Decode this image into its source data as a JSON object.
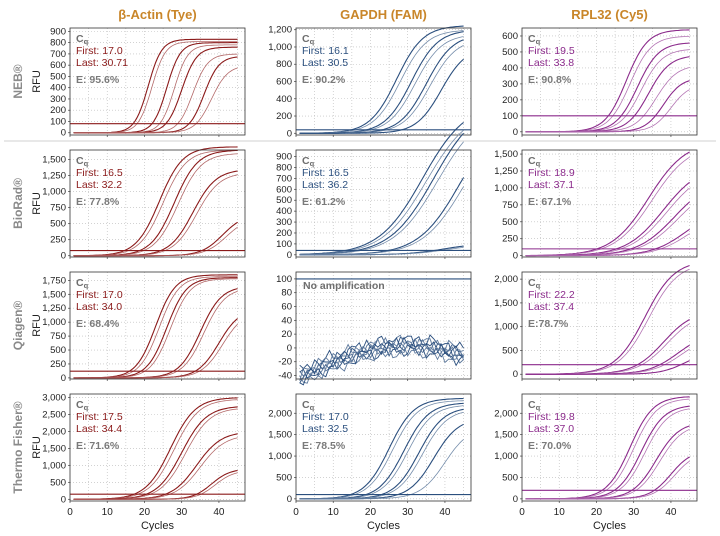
{
  "figure": {
    "columns": [
      {
        "title": "β-Actin (Tye)",
        "color": "#8b1a1a"
      },
      {
        "title": "GAPDH (FAM)",
        "color": "#2b4f7e"
      },
      {
        "title": "RPL32 (Cy5)",
        "color": "#8b2a8b"
      }
    ],
    "rows": [
      "NEB®",
      "BioRad®",
      "Qiagen®",
      "Thermo Fisher®"
    ],
    "y_label": "RFU",
    "x_label": "Cycles",
    "header_color": "#c9862a",
    "cq_label": "Cq"
  },
  "chart_data": [
    {
      "type": "line",
      "row": 0,
      "col": 0,
      "xlim": [
        0,
        47
      ],
      "ylim": [
        -20,
        930
      ],
      "yticks": [
        0,
        100,
        200,
        300,
        400,
        500,
        600,
        700,
        800,
        900
      ],
      "xticks": [
        0,
        10,
        20,
        30,
        40
      ],
      "threshold": 80,
      "first": "First: 17.0",
      "last": "Last: 30.71",
      "efficiency": "E: 95.6%",
      "curves": [
        {
          "mid": 21,
          "k": 0.55,
          "plateau": 830,
          "base": 0
        },
        {
          "mid": 22,
          "k": 0.55,
          "plateau": 810,
          "base": 0
        },
        {
          "mid": 26,
          "k": 0.55,
          "plateau": 800,
          "base": 0
        },
        {
          "mid": 28,
          "k": 0.55,
          "plateau": 780,
          "base": 0
        },
        {
          "mid": 30,
          "k": 0.5,
          "plateau": 760,
          "base": 0
        },
        {
          "mid": 33,
          "k": 0.5,
          "plateau": 700,
          "base": 0
        },
        {
          "mid": 36,
          "k": 0.5,
          "plateau": 680,
          "base": 0
        },
        {
          "mid": 38,
          "k": 0.45,
          "plateau": 600,
          "base": 0
        }
      ]
    },
    {
      "type": "line",
      "row": 0,
      "col": 1,
      "xlim": [
        0,
        47
      ],
      "ylim": [
        -20,
        1220
      ],
      "yticks": [
        0,
        200,
        400,
        600,
        800,
        1000,
        1200
      ],
      "xticks": [
        0,
        10,
        20,
        30,
        40
      ],
      "threshold": 40,
      "first": "First: 16.1",
      "last": "Last: 30.5",
      "efficiency": "E: 90.2%",
      "curves": [
        {
          "mid": 27,
          "k": 0.28,
          "plateau": 1250,
          "base": 0
        },
        {
          "mid": 28,
          "k": 0.28,
          "plateau": 1200,
          "base": 0
        },
        {
          "mid": 31,
          "k": 0.28,
          "plateau": 1200,
          "base": 0
        },
        {
          "mid": 32,
          "k": 0.28,
          "plateau": 1150,
          "base": 0
        },
        {
          "mid": 35,
          "k": 0.28,
          "plateau": 1150,
          "base": 0
        },
        {
          "mid": 36,
          "k": 0.28,
          "plateau": 1100,
          "base": 0
        },
        {
          "mid": 39,
          "k": 0.3,
          "plateau": 1000,
          "base": 0
        }
      ]
    },
    {
      "type": "line",
      "row": 0,
      "col": 2,
      "xlim": [
        0,
        47
      ],
      "ylim": [
        -20,
        650
      ],
      "yticks": [
        0,
        100,
        200,
        300,
        400,
        500,
        600
      ],
      "xticks": [
        0,
        10,
        20,
        30,
        40
      ],
      "threshold": 100,
      "first": "First: 19.5",
      "last": "Last: 33.8",
      "efficiency": "E: 90.8%",
      "curves": [
        {
          "mid": 28,
          "k": 0.35,
          "plateau": 640,
          "base": 0
        },
        {
          "mid": 29,
          "k": 0.35,
          "plateau": 600,
          "base": 0
        },
        {
          "mid": 31,
          "k": 0.35,
          "plateau": 560,
          "base": 0
        },
        {
          "mid": 32,
          "k": 0.35,
          "plateau": 520,
          "base": 0
        },
        {
          "mid": 34,
          "k": 0.35,
          "plateau": 480,
          "base": 0
        },
        {
          "mid": 36,
          "k": 0.35,
          "plateau": 420,
          "base": 0
        },
        {
          "mid": 38,
          "k": 0.4,
          "plateau": 340,
          "base": 0
        },
        {
          "mid": 40,
          "k": 0.4,
          "plateau": 300,
          "base": 0
        }
      ]
    },
    {
      "type": "line",
      "row": 1,
      "col": 0,
      "xlim": [
        0,
        47
      ],
      "ylim": [
        -20,
        1650
      ],
      "yticks": [
        0,
        250,
        500,
        750,
        1000,
        1250,
        1500
      ],
      "xticks": [
        0,
        10,
        20,
        30,
        40
      ],
      "threshold": 80,
      "first": "First: 16.5",
      "last": "Last: 32.2",
      "efficiency": "E: 77.8%",
      "curves": [
        {
          "mid": 24,
          "k": 0.32,
          "plateau": 1700,
          "base": 0
        },
        {
          "mid": 25,
          "k": 0.32,
          "plateau": 1650,
          "base": 0
        },
        {
          "mid": 28,
          "k": 0.32,
          "plateau": 1650,
          "base": 0
        },
        {
          "mid": 29,
          "k": 0.32,
          "plateau": 1600,
          "base": 0
        },
        {
          "mid": 33,
          "k": 0.32,
          "plateau": 1350,
          "base": 0
        },
        {
          "mid": 34,
          "k": 0.32,
          "plateau": 1300,
          "base": 0
        },
        {
          "mid": 41,
          "k": 0.35,
          "plateau": 650,
          "base": 0
        },
        {
          "mid": 42,
          "k": 0.35,
          "plateau": 600,
          "base": 0
        }
      ]
    },
    {
      "type": "line",
      "row": 1,
      "col": 1,
      "xlim": [
        0,
        47
      ],
      "ylim": [
        -20,
        960
      ],
      "yticks": [
        0,
        100,
        200,
        300,
        400,
        500,
        600,
        700,
        800,
        900
      ],
      "xticks": [
        0,
        10,
        20,
        30,
        40
      ],
      "threshold": 40,
      "first": "First: 16.5",
      "last": "Last: 36.2",
      "efficiency": "E: 61.2%",
      "curves": [
        {
          "mid": 34,
          "k": 0.17,
          "plateau": 1400,
          "base": 0
        },
        {
          "mid": 35,
          "k": 0.17,
          "plateau": 1350,
          "base": 0
        },
        {
          "mid": 37,
          "k": 0.17,
          "plateau": 1400,
          "base": 0
        },
        {
          "mid": 38,
          "k": 0.17,
          "plateau": 1350,
          "base": 0
        },
        {
          "mid": 44,
          "k": 0.18,
          "plateau": 1300,
          "base": 0
        },
        {
          "mid": 45,
          "k": 0.18,
          "plateau": 1250,
          "base": 0
        },
        {
          "mid": 40,
          "k": 0.2,
          "plateau": 110,
          "base": 0
        },
        {
          "mid": 41,
          "k": 0.2,
          "plateau": 100,
          "base": 0
        }
      ]
    },
    {
      "type": "line",
      "row": 1,
      "col": 2,
      "xlim": [
        0,
        47
      ],
      "ylim": [
        -20,
        1560
      ],
      "yticks": [
        0,
        250,
        500,
        750,
        1000,
        1250,
        1500
      ],
      "xticks": [
        0,
        10,
        20,
        30,
        40
      ],
      "threshold": 100,
      "first": "First: 18.9",
      "last": "Last: 37.1",
      "efficiency": "E: 67.1%",
      "curves": [
        {
          "mid": 34,
          "k": 0.2,
          "plateau": 1700,
          "base": 0
        },
        {
          "mid": 35,
          "k": 0.2,
          "plateau": 1650,
          "base": 0
        },
        {
          "mid": 38,
          "k": 0.2,
          "plateau": 1350,
          "base": 0
        },
        {
          "mid": 39,
          "k": 0.2,
          "plateau": 1300,
          "base": 0
        },
        {
          "mid": 41,
          "k": 0.2,
          "plateau": 1150,
          "base": 0
        },
        {
          "mid": 42,
          "k": 0.2,
          "plateau": 1100,
          "base": 0
        },
        {
          "mid": 44,
          "k": 0.22,
          "plateau": 700,
          "base": 0
        },
        {
          "mid": 45,
          "k": 0.22,
          "plateau": 650,
          "base": 0
        }
      ]
    },
    {
      "type": "line",
      "row": 2,
      "col": 0,
      "xlim": [
        0,
        47
      ],
      "ylim": [
        -20,
        1900
      ],
      "yticks": [
        0,
        250,
        500,
        750,
        1000,
        1250,
        1500,
        1750
      ],
      "xticks": [
        0,
        10,
        20,
        30,
        40
      ],
      "threshold": 120,
      "first": "First: 17.0",
      "last": "Last: 34.0",
      "efficiency": "E: 68.4%",
      "curves": [
        {
          "mid": 23,
          "k": 0.38,
          "plateau": 1850,
          "base": 0
        },
        {
          "mid": 24,
          "k": 0.38,
          "plateau": 1820,
          "base": 0
        },
        {
          "mid": 26,
          "k": 0.38,
          "plateau": 1800,
          "base": 0
        },
        {
          "mid": 27,
          "k": 0.38,
          "plateau": 1780,
          "base": 0
        },
        {
          "mid": 35,
          "k": 0.35,
          "plateau": 1650,
          "base": 0
        },
        {
          "mid": 36,
          "k": 0.35,
          "plateau": 1620,
          "base": 0
        },
        {
          "mid": 40,
          "k": 0.35,
          "plateau": 1250,
          "base": 0
        },
        {
          "mid": 41,
          "k": 0.35,
          "plateau": 1200,
          "base": 0
        }
      ]
    },
    {
      "type": "line",
      "row": 2,
      "col": 1,
      "xlim": [
        0,
        47
      ],
      "ylim": [
        -45,
        110
      ],
      "yticks": [
        -40,
        -30,
        -20,
        -10,
        0,
        10,
        20,
        30,
        40,
        50,
        60,
        70,
        80,
        90,
        100
      ],
      "xticks": [
        0,
        10,
        20,
        30,
        40
      ],
      "threshold": 100,
      "annotation": "No amplification",
      "noise": true
    },
    {
      "type": "line",
      "row": 2,
      "col": 2,
      "xlim": [
        0,
        47
      ],
      "ylim": [
        -100,
        2150
      ],
      "yticks": [
        0,
        500,
        1000,
        1500,
        2000
      ],
      "xticks": [
        0,
        10,
        20,
        30,
        40
      ],
      "threshold": 200,
      "first": "First: 22.2",
      "last": "Last: 37.4",
      "efficiency": "E:78.7%",
      "curves": [
        {
          "mid": 33,
          "k": 0.25,
          "plateau": 2400,
          "base": 0
        },
        {
          "mid": 34,
          "k": 0.25,
          "plateau": 2350,
          "base": 0
        },
        {
          "mid": 38,
          "k": 0.25,
          "plateau": 1350,
          "base": 0
        },
        {
          "mid": 39,
          "k": 0.25,
          "plateau": 1300,
          "base": 0
        },
        {
          "mid": 42,
          "k": 0.25,
          "plateau": 900,
          "base": 0
        },
        {
          "mid": 43,
          "k": 0.25,
          "plateau": 850,
          "base": 0
        },
        {
          "mid": 44,
          "k": 0.3,
          "plateau": 500,
          "base": 0
        }
      ]
    },
    {
      "type": "line",
      "row": 3,
      "col": 0,
      "xlim": [
        0,
        47
      ],
      "ylim": [
        -50,
        3100
      ],
      "yticks": [
        0,
        500,
        1000,
        1500,
        2000,
        2500,
        3000
      ],
      "xticks": [
        0,
        10,
        20,
        30,
        40
      ],
      "threshold": 150,
      "first": "First: 17.5",
      "last": "Last: 34.4",
      "efficiency": "E: 71.6%",
      "curves": [
        {
          "mid": 27,
          "k": 0.3,
          "plateau": 3000,
          "base": 0
        },
        {
          "mid": 28,
          "k": 0.3,
          "plateau": 2950,
          "base": 0
        },
        {
          "mid": 30,
          "k": 0.3,
          "plateau": 2750,
          "base": 0
        },
        {
          "mid": 31,
          "k": 0.3,
          "plateau": 2700,
          "base": 0
        },
        {
          "mid": 34,
          "k": 0.3,
          "plateau": 2000,
          "base": 0
        },
        {
          "mid": 35,
          "k": 0.3,
          "plateau": 1900,
          "base": 0
        },
        {
          "mid": 38,
          "k": 0.4,
          "plateau": 900,
          "base": 0
        },
        {
          "mid": 39,
          "k": 0.4,
          "plateau": 850,
          "base": 0
        }
      ]
    },
    {
      "type": "line",
      "row": 3,
      "col": 1,
      "xlim": [
        0,
        47
      ],
      "ylim": [
        -50,
        2450
      ],
      "yticks": [
        0,
        500,
        1000,
        1500,
        2000
      ],
      "xticks": [
        0,
        10,
        20,
        30,
        40
      ],
      "threshold": 100,
      "first": "First: 17.0",
      "last": "Last: 32.5",
      "efficiency": "E: 78.5%",
      "curves": [
        {
          "mid": 25,
          "k": 0.3,
          "plateau": 2350,
          "base": 0
        },
        {
          "mid": 26,
          "k": 0.3,
          "plateau": 2300,
          "base": 0
        },
        {
          "mid": 29,
          "k": 0.3,
          "plateau": 2250,
          "base": 0
        },
        {
          "mid": 30,
          "k": 0.3,
          "plateau": 2200,
          "base": 0
        },
        {
          "mid": 33,
          "k": 0.3,
          "plateau": 2150,
          "base": 0
        },
        {
          "mid": 34,
          "k": 0.3,
          "plateau": 2100,
          "base": 0
        },
        {
          "mid": 37,
          "k": 0.3,
          "plateau": 1900,
          "base": 0
        },
        {
          "mid": 40,
          "k": 0.3,
          "plateau": 1700,
          "base": 0
        }
      ]
    },
    {
      "type": "line",
      "row": 3,
      "col": 2,
      "xlim": [
        0,
        47
      ],
      "ylim": [
        -50,
        2450
      ],
      "yticks": [
        0,
        500,
        1000,
        1500,
        2000
      ],
      "xticks": [
        0,
        10,
        20,
        30,
        40
      ],
      "threshold": 200,
      "first": "First: 19.8",
      "last": "Last: 37.0",
      "efficiency": "E: 70.0%",
      "curves": [
        {
          "mid": 29,
          "k": 0.32,
          "plateau": 2400,
          "base": 0
        },
        {
          "mid": 30,
          "k": 0.32,
          "plateau": 2350,
          "base": 0
        },
        {
          "mid": 32,
          "k": 0.32,
          "plateau": 2200,
          "base": 0
        },
        {
          "mid": 33,
          "k": 0.32,
          "plateau": 2150,
          "base": 0
        },
        {
          "mid": 36,
          "k": 0.32,
          "plateau": 1800,
          "base": 0
        },
        {
          "mid": 37,
          "k": 0.32,
          "plateau": 1750,
          "base": 0
        },
        {
          "mid": 40,
          "k": 0.35,
          "plateau": 1150,
          "base": 0
        },
        {
          "mid": 41,
          "k": 0.35,
          "plateau": 1100,
          "base": 0
        }
      ]
    }
  ]
}
